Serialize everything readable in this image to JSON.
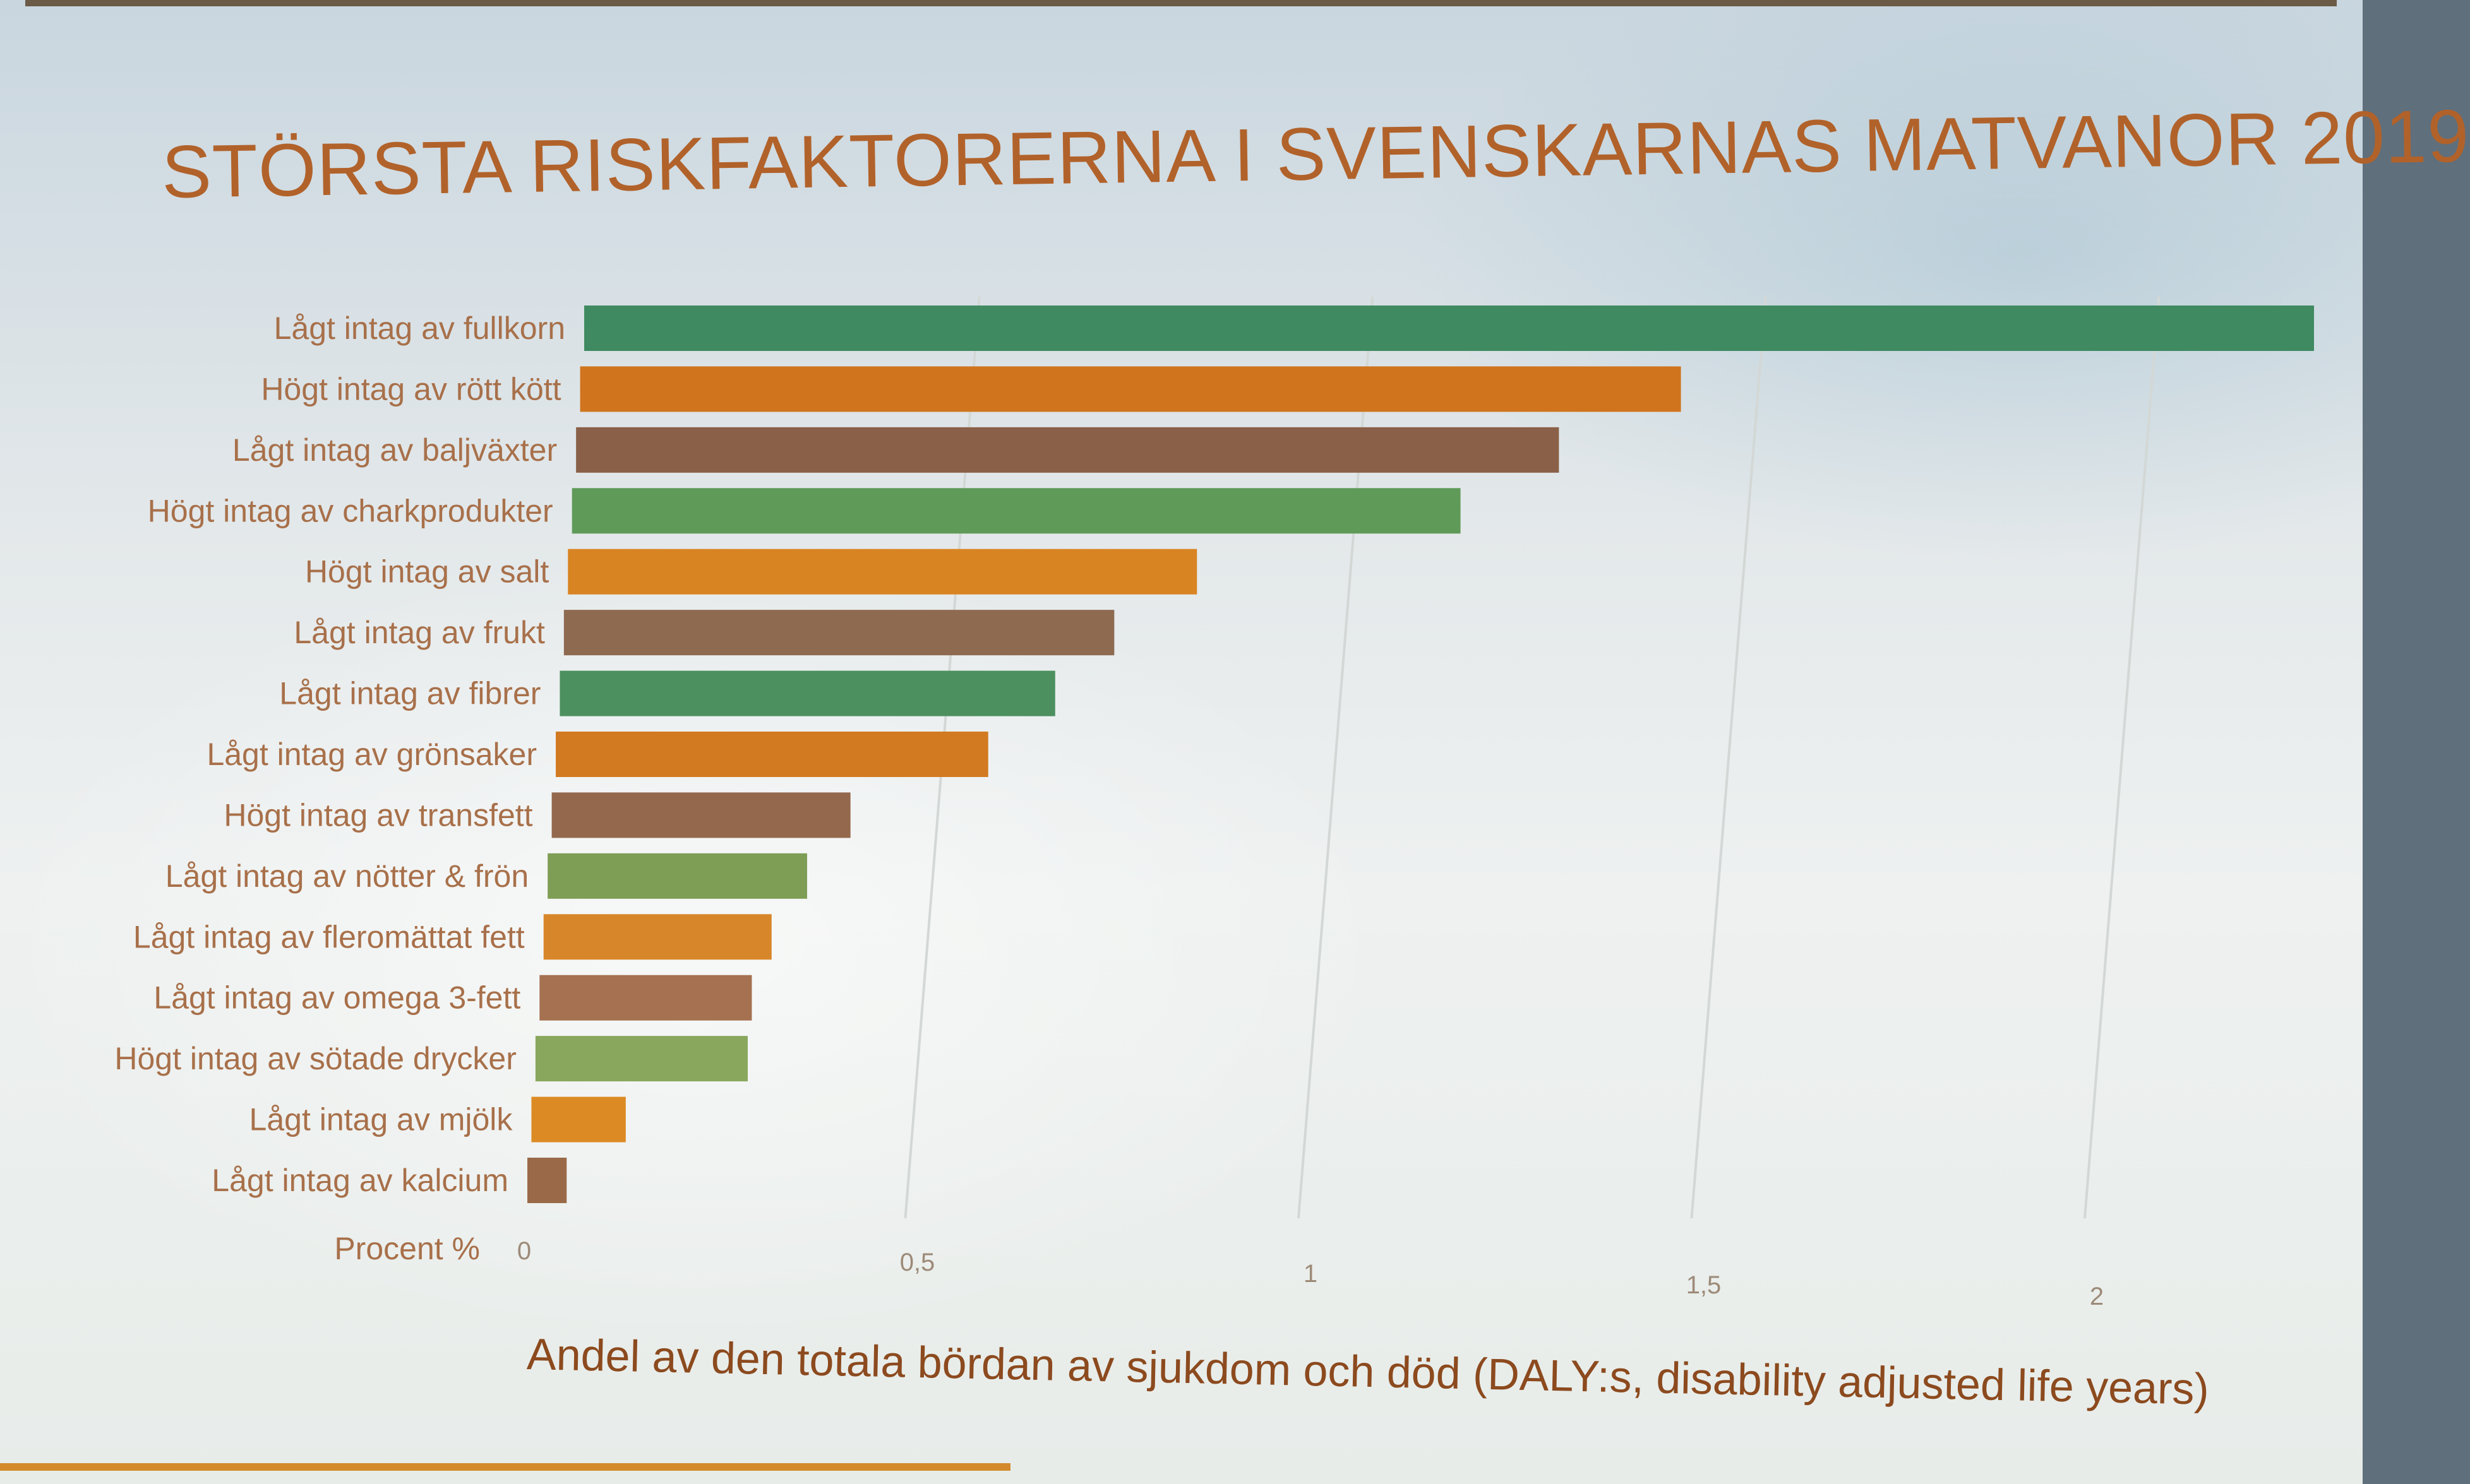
{
  "chart_data": {
    "type": "bar",
    "orientation": "horizontal",
    "title": "STÖRSTA RISKFAKTORERNA I SVENSKARNAS MATVANOR 2019",
    "xlabel": "Andel av den totala bördan av sjukdom och död (DALY:s, disability adjusted life years)",
    "axis_prefix": "Procent %",
    "categories": [
      "Lågt intag av fullkorn",
      "Högt intag av rött kött",
      "Lågt intag av baljväxter",
      "Högt intag av charkprodukter",
      "Högt intag av salt",
      "Lågt intag av frukt",
      "Lågt intag av fibrer",
      "Lågt intag av grönsaker",
      "Högt intag av transfett",
      "Lågt intag av nötter & frön",
      "Lågt intag av fleromättat fett",
      "Lågt intag av omega 3-fett",
      "Högt intag av sötade drycker",
      "Lågt intag av mjölk",
      "Lågt intag av kalcium"
    ],
    "values": [
      2.2,
      1.4,
      1.25,
      1.13,
      0.8,
      0.7,
      0.63,
      0.55,
      0.38,
      0.33,
      0.29,
      0.27,
      0.27,
      0.12,
      0.05
    ],
    "xticks": [
      0,
      0.5,
      1,
      1.5,
      2
    ],
    "xtick_labels": [
      "0",
      "0,5",
      "1",
      "1,5",
      "2"
    ],
    "xlim": [
      0,
      2.2
    ],
    "grid": true,
    "legend": "none",
    "colors": [
      "#3f8a60",
      "#d0741d",
      "#8a6048",
      "#5f9a58",
      "#d98423",
      "#8e6a50",
      "#4d9060",
      "#d27a22",
      "#94684d",
      "#7f9e55",
      "#d8862a",
      "#a57150",
      "#8aa75e",
      "#dc8b24",
      "#9a6a48"
    ]
  }
}
